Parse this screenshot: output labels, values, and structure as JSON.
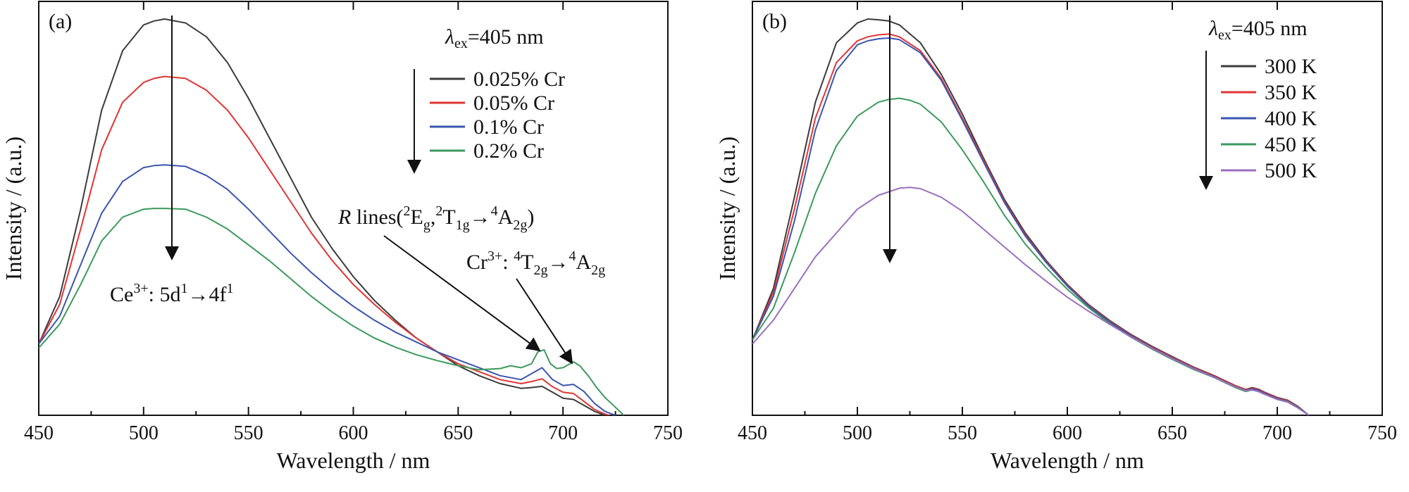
{
  "chart_data": [
    {
      "type": "line",
      "panel_label": "(a)",
      "xlabel": "Wavelength / nm",
      "ylabel": "Intensity / (a.u.)",
      "xlim": [
        450,
        750
      ],
      "ylim": [
        0,
        1.0
      ],
      "x_ticks": [
        "450",
        "500",
        "550",
        "600",
        "650",
        "700",
        "750"
      ],
      "y_ticks_shown": false,
      "excitation_label": {
        "prefix": "λ",
        "sub": "ex",
        "suffix": "=405 nm"
      },
      "legend_position": "top-right",
      "arrow_direction": "down",
      "series": [
        {
          "name": "0.025% Cr",
          "color": "#3b3b3b",
          "x": [
            450,
            460,
            470,
            480,
            490,
            500,
            505,
            510,
            520,
            530,
            540,
            550,
            560,
            570,
            580,
            590,
            600,
            610,
            620,
            630,
            640,
            650,
            660,
            670,
            680,
            685,
            690,
            695,
            700,
            705,
            710,
            715,
            720
          ],
          "y": [
            0.18,
            0.3,
            0.52,
            0.77,
            0.92,
            0.985,
            0.995,
            1.0,
            0.99,
            0.955,
            0.89,
            0.8,
            0.7,
            0.6,
            0.5,
            0.42,
            0.35,
            0.29,
            0.24,
            0.195,
            0.16,
            0.125,
            0.1,
            0.08,
            0.068,
            0.07,
            0.073,
            0.058,
            0.043,
            0.04,
            0.025,
            0.01,
            0.0
          ]
        },
        {
          "name": "0.05% Cr",
          "color": "#e03535",
          "x": [
            450,
            460,
            470,
            480,
            490,
            500,
            505,
            510,
            520,
            530,
            540,
            550,
            560,
            570,
            580,
            590,
            600,
            610,
            620,
            630,
            640,
            650,
            660,
            670,
            680,
            685,
            690,
            695,
            700,
            705,
            710,
            715,
            720,
            722
          ],
          "y": [
            0.18,
            0.28,
            0.47,
            0.67,
            0.79,
            0.84,
            0.85,
            0.855,
            0.85,
            0.82,
            0.77,
            0.7,
            0.62,
            0.54,
            0.46,
            0.39,
            0.33,
            0.28,
            0.235,
            0.195,
            0.16,
            0.13,
            0.11,
            0.09,
            0.08,
            0.085,
            0.092,
            0.072,
            0.058,
            0.055,
            0.035,
            0.015,
            0.003,
            0.0
          ]
        },
        {
          "name": "0.1% Cr",
          "color": "#3a55b0",
          "x": [
            450,
            460,
            470,
            480,
            490,
            500,
            505,
            510,
            520,
            530,
            540,
            550,
            560,
            570,
            580,
            590,
            600,
            610,
            620,
            630,
            640,
            650,
            660,
            670,
            680,
            685,
            690,
            695,
            700,
            705,
            710,
            715,
            720,
            725
          ],
          "y": [
            0.18,
            0.25,
            0.38,
            0.51,
            0.59,
            0.625,
            0.63,
            0.632,
            0.628,
            0.605,
            0.57,
            0.52,
            0.465,
            0.41,
            0.36,
            0.315,
            0.275,
            0.24,
            0.21,
            0.185,
            0.16,
            0.14,
            0.12,
            0.1,
            0.09,
            0.105,
            0.12,
            0.09,
            0.075,
            0.078,
            0.06,
            0.03,
            0.01,
            0.0
          ]
        },
        {
          "name": "0.2% Cr",
          "color": "#3b9a5c",
          "x": [
            450,
            460,
            470,
            480,
            490,
            500,
            505,
            510,
            520,
            530,
            540,
            550,
            560,
            570,
            580,
            590,
            600,
            610,
            620,
            630,
            640,
            650,
            660,
            670,
            675,
            680,
            685,
            688,
            691,
            694,
            697,
            700,
            705,
            708,
            712,
            716,
            720,
            725,
            729
          ],
          "y": [
            0.17,
            0.23,
            0.33,
            0.44,
            0.5,
            0.52,
            0.522,
            0.522,
            0.52,
            0.5,
            0.47,
            0.43,
            0.39,
            0.345,
            0.3,
            0.26,
            0.225,
            0.195,
            0.172,
            0.153,
            0.138,
            0.125,
            0.115,
            0.118,
            0.125,
            0.12,
            0.13,
            0.16,
            0.165,
            0.13,
            0.118,
            0.12,
            0.135,
            0.125,
            0.1,
            0.07,
            0.045,
            0.02,
            0.0
          ]
        }
      ]
    },
    {
      "type": "line",
      "panel_label": "(b)",
      "xlabel": "Wavelength / nm",
      "ylabel": "Intensity / (a.u.)",
      "xlim": [
        450,
        750
      ],
      "ylim": [
        0,
        1.0
      ],
      "x_ticks": [
        "450",
        "500",
        "550",
        "600",
        "650",
        "700",
        "750"
      ],
      "y_ticks_shown": false,
      "excitation_label": {
        "prefix": "λ",
        "sub": "ex",
        "suffix": "=405 nm"
      },
      "legend_position": "top-right",
      "arrow_direction": "down",
      "series": [
        {
          "name": "300 K",
          "color": "#3b3b3b",
          "x": [
            450,
            460,
            470,
            480,
            490,
            500,
            505,
            510,
            515,
            520,
            530,
            540,
            550,
            560,
            570,
            580,
            590,
            600,
            610,
            620,
            630,
            640,
            650,
            660,
            670,
            680,
            685,
            688,
            691,
            694,
            700,
            705,
            710,
            715
          ],
          "y": [
            0.19,
            0.32,
            0.55,
            0.79,
            0.94,
            0.99,
            1.0,
            0.998,
            0.995,
            0.985,
            0.94,
            0.86,
            0.76,
            0.65,
            0.545,
            0.46,
            0.39,
            0.33,
            0.28,
            0.24,
            0.205,
            0.175,
            0.148,
            0.122,
            0.1,
            0.075,
            0.065,
            0.07,
            0.066,
            0.058,
            0.045,
            0.038,
            0.022,
            0.0
          ]
        },
        {
          "name": "350 K",
          "color": "#e03535",
          "x": [
            450,
            460,
            470,
            480,
            490,
            500,
            505,
            510,
            515,
            520,
            530,
            540,
            550,
            560,
            570,
            580,
            590,
            600,
            610,
            620,
            630,
            640,
            650,
            660,
            670,
            680,
            685,
            688,
            691,
            694,
            700,
            705,
            710,
            715
          ],
          "y": [
            0.19,
            0.31,
            0.52,
            0.75,
            0.89,
            0.945,
            0.955,
            0.96,
            0.962,
            0.955,
            0.92,
            0.85,
            0.75,
            0.645,
            0.54,
            0.455,
            0.387,
            0.328,
            0.278,
            0.238,
            0.203,
            0.173,
            0.146,
            0.121,
            0.099,
            0.074,
            0.064,
            0.069,
            0.065,
            0.057,
            0.044,
            0.037,
            0.021,
            0.0
          ]
        },
        {
          "name": "400 K",
          "color": "#3a55b0",
          "x": [
            450,
            460,
            470,
            480,
            490,
            500,
            505,
            510,
            515,
            520,
            530,
            540,
            550,
            560,
            570,
            580,
            590,
            600,
            610,
            620,
            630,
            640,
            650,
            660,
            670,
            680,
            685,
            688,
            691,
            694,
            700,
            705,
            710,
            715
          ],
          "y": [
            0.19,
            0.3,
            0.49,
            0.72,
            0.87,
            0.935,
            0.945,
            0.95,
            0.952,
            0.948,
            0.915,
            0.845,
            0.745,
            0.64,
            0.537,
            0.452,
            0.385,
            0.326,
            0.276,
            0.236,
            0.201,
            0.171,
            0.144,
            0.119,
            0.097,
            0.072,
            0.062,
            0.067,
            0.063,
            0.055,
            0.042,
            0.035,
            0.02,
            0.0
          ]
        },
        {
          "name": "450 K",
          "color": "#3b9a5c",
          "x": [
            450,
            460,
            470,
            480,
            490,
            500,
            510,
            515,
            520,
            525,
            530,
            540,
            550,
            560,
            570,
            580,
            590,
            600,
            610,
            620,
            630,
            640,
            650,
            660,
            670,
            680,
            685,
            688,
            691,
            694,
            700,
            705,
            710,
            715
          ],
          "y": [
            0.19,
            0.27,
            0.41,
            0.56,
            0.68,
            0.755,
            0.79,
            0.797,
            0.8,
            0.795,
            0.785,
            0.74,
            0.67,
            0.59,
            0.505,
            0.432,
            0.372,
            0.318,
            0.272,
            0.232,
            0.198,
            0.168,
            0.141,
            0.116,
            0.095,
            0.07,
            0.06,
            0.064,
            0.06,
            0.053,
            0.04,
            0.034,
            0.019,
            0.0
          ]
        },
        {
          "name": "500 K",
          "color": "#9b6fc0",
          "x": [
            450,
            460,
            470,
            480,
            490,
            500,
            510,
            520,
            525,
            530,
            540,
            550,
            560,
            570,
            580,
            590,
            600,
            610,
            620,
            630,
            640,
            650,
            660,
            670,
            680,
            685,
            688,
            691,
            694,
            700,
            705,
            710,
            715
          ],
          "y": [
            0.18,
            0.24,
            0.32,
            0.4,
            0.46,
            0.52,
            0.555,
            0.573,
            0.575,
            0.572,
            0.55,
            0.515,
            0.47,
            0.425,
            0.38,
            0.338,
            0.298,
            0.263,
            0.23,
            0.199,
            0.17,
            0.143,
            0.118,
            0.096,
            0.072,
            0.062,
            0.064,
            0.06,
            0.053,
            0.04,
            0.033,
            0.018,
            0.0
          ]
        }
      ]
    }
  ],
  "annotations_a": {
    "r_lines": {
      "italic": "R",
      "text": " lines(",
      "sup1": "2",
      "t1": "E",
      "sub1": "g",
      "comma": ",",
      "sup2": "2",
      "t2": "T",
      "sub2": "1g",
      "arrow": "→",
      "sup3": "4",
      "t3": "A",
      "sub3": "2g",
      "close": ")"
    },
    "cr_band": {
      "t1": "Cr",
      "sup1": "3+",
      "colon": ": ",
      "sup2": "4",
      "t2": "T",
      "sub2": "2g",
      "arrow": "→",
      "sup3": "4",
      "t3": "A",
      "sub3": "2g"
    },
    "ce_band": {
      "t1": "Ce",
      "sup1": "3+",
      "colon": ": 5d",
      "sup2": "1",
      "arrow": "→4f",
      "sup3": "1"
    }
  }
}
